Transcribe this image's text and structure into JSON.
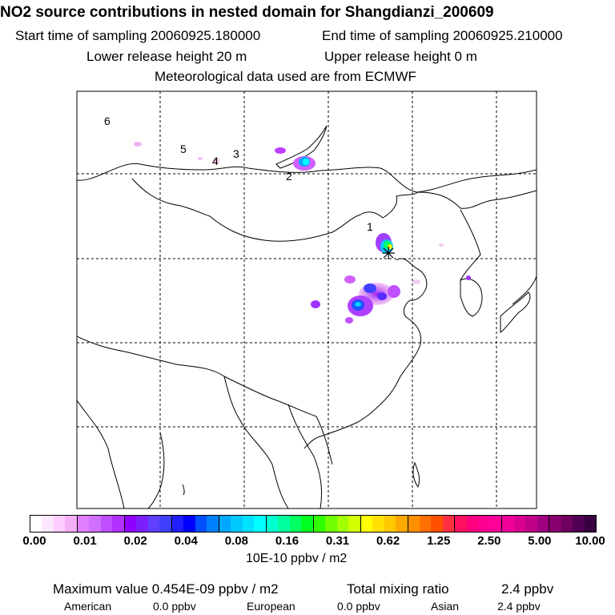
{
  "header": {
    "title": "NO2 source contributions in nested domain for Shangdianzi_200609",
    "start_time": "Start time of sampling 20060925.180000",
    "end_time": "End time of sampling 20060925.210000",
    "lower_height": "Lower release height   20 m",
    "upper_height": "Upper release height    0 m",
    "met_data": "Meteorological data used are from ECMWF"
  },
  "map": {
    "region_labels": [
      "6",
      "5",
      "4",
      "3",
      "2",
      "1"
    ],
    "station_marker": "receptor-star",
    "palette": {
      "low": "#f7d6f7",
      "mid_purple": "#a020f0",
      "blue": "#1e3cff",
      "cyan": "#00e5ff",
      "green": "#00ff40",
      "yellow": "#ffee00"
    }
  },
  "colorbar": {
    "ticks": [
      "0.00",
      "0.01",
      "0.02",
      "0.04",
      "0.08",
      "0.16",
      "0.31",
      "0.62",
      "1.25",
      "2.50",
      "5.00",
      "10.00"
    ],
    "colors": [
      "#ffffff",
      "#ffe6ff",
      "#ffccff",
      "#f5b0f5",
      "#e080ff",
      "#d070ff",
      "#c050ff",
      "#b030ff",
      "#9000ff",
      "#7a20ff",
      "#6040ff",
      "#4040ff",
      "#2020ff",
      "#0000ff",
      "#0050ff",
      "#0080ff",
      "#00a8ff",
      "#00c8ff",
      "#00e0ff",
      "#00ffff",
      "#00ffd0",
      "#00ffa0",
      "#00ff60",
      "#00ff20",
      "#30ff00",
      "#70ff00",
      "#a0ff00",
      "#d0ff00",
      "#ffff00",
      "#ffe000",
      "#ffc800",
      "#ffa800",
      "#ff9000",
      "#ff7000",
      "#ff5000",
      "#ff3040",
      "#ff1060",
      "#ff0080",
      "#ff0090",
      "#ff0099",
      "#ee0099",
      "#d80090",
      "#c00088",
      "#a00080",
      "#880070",
      "#700060",
      "#500050",
      "#380040"
    ],
    "units": "10E-10 ppbv / m2"
  },
  "footer": {
    "max_value": "Maximum value  0.454E-09 ppbv / m2",
    "total_label": "Total mixing ratio",
    "total_value": "2.4 ppbv",
    "american_label": "American",
    "american_value": "0.0 ppbv",
    "european_label": "European",
    "european_value": "0.0 ppbv",
    "asian_label": "Asian",
    "asian_value": "2.4 ppbv"
  }
}
